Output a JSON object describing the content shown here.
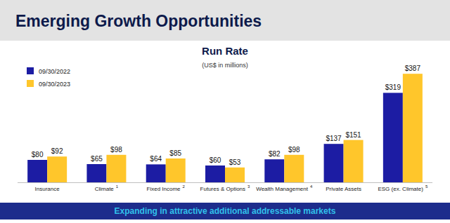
{
  "chart_data": {
    "type": "bar",
    "header": "Emerging Growth Opportunities",
    "title": "Run Rate",
    "subtitle": "(US$ in millions)",
    "footer": "Expanding in attractive additional addressable markets",
    "categories": [
      "Insurance",
      "Climate",
      "Fixed Income",
      "Futures & Options",
      "Wealth Management",
      "Private Assets",
      "ESG (ex. Climate)"
    ],
    "category_notes": [
      null,
      "1",
      "2",
      "3",
      "4",
      null,
      "5"
    ],
    "series": [
      {
        "name": "09/30/2022",
        "color": "#1c1ca3",
        "values": [
          80,
          65,
          64,
          60,
          82,
          137,
          319
        ],
        "value_labels": [
          "$80",
          "$65",
          "$64",
          "$60",
          "$82",
          "$137",
          "$319"
        ]
      },
      {
        "name": "09/30/2023",
        "color": "#ffc62b",
        "values": [
          92,
          98,
          85,
          53,
          98,
          151,
          387
        ],
        "value_labels": [
          "$92",
          "$98",
          "$85",
          "$53",
          "$98",
          "$151",
          "$387"
        ]
      }
    ],
    "ylim": [
      0,
      400
    ],
    "tick_labels": false,
    "grid": false,
    "legend": "top-left",
    "data_labels": true
  }
}
